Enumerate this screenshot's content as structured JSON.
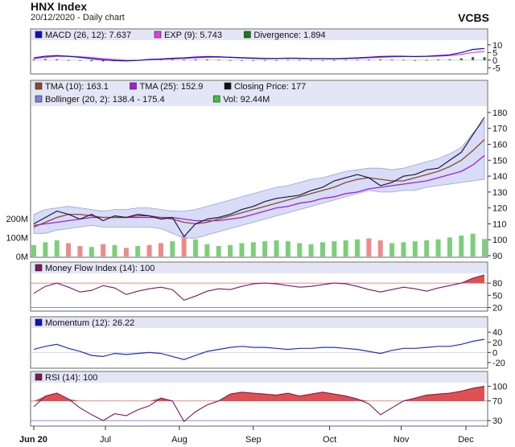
{
  "header": {
    "title": "HNX Index",
    "subtitle": "20/12/2020 - Daily chart",
    "brand": "VCBS"
  },
  "x_axis": {
    "months": [
      "Jun 20",
      "Jul",
      "Aug",
      "Sep",
      "Oct",
      "Nov",
      "Dec"
    ]
  },
  "chart_data": [
    {
      "panel": "MACD",
      "type": "line",
      "legend": [
        {
          "label": "MACD (26, 12): 7.637",
          "color": "#1010c0"
        },
        {
          "label": "EXP (9): 5.743",
          "color": "#e040e0"
        },
        {
          "label": "Divergence: 1.894",
          "color": "#1a7a1a"
        }
      ],
      "yticks": [
        10,
        5,
        0,
        -5
      ],
      "ylim": [
        -8,
        12
      ],
      "series": [
        {
          "name": "MACD (26, 12)",
          "color": "#1010c0",
          "values": [
            1.5,
            2.5,
            3,
            2.5,
            1.8,
            1,
            0.2,
            -0.3,
            -0.5,
            -0.2,
            0.5,
            0.8,
            1.2,
            1.5,
            2.0,
            2.3,
            2.2,
            1.8,
            1.5,
            1.2,
            1.0,
            1.1,
            1.3,
            1.2,
            1.0,
            1.0,
            0.9,
            1.2,
            1.5,
            1.9,
            2.3,
            2.5,
            2.5,
            2.3,
            2.5,
            3.0,
            3.5,
            5.0,
            7.0,
            7.6
          ]
        },
        {
          "name": "EXP (9)",
          "color": "#e040e0",
          "values": [
            1.0,
            1.8,
            2.4,
            2.5,
            2.2,
            1.7,
            1.0,
            0.4,
            0.0,
            -0.1,
            0.2,
            0.5,
            0.8,
            1.1,
            1.5,
            1.8,
            2.0,
            1.9,
            1.7,
            1.4,
            1.2,
            1.1,
            1.1,
            1.1,
            1.1,
            1.0,
            1.0,
            1.0,
            1.2,
            1.5,
            1.8,
            2.1,
            2.3,
            2.3,
            2.4,
            2.6,
            3.0,
            3.8,
            5.0,
            5.7
          ]
        }
      ],
      "divergence": [
        0.5,
        0.7,
        0.6,
        0,
        -0.4,
        -0.7,
        -0.8,
        -0.7,
        -0.5,
        -0.1,
        0.3,
        0.3,
        0.4,
        0.4,
        0.5,
        0.5,
        0.2,
        -0.1,
        -0.2,
        -0.2,
        -0.2,
        0,
        0.2,
        0.1,
        -0.1,
        0,
        -0.1,
        0.2,
        0.3,
        0.4,
        0.5,
        0.4,
        0.2,
        0,
        0.1,
        0.4,
        0.5,
        1.2,
        2.0,
        1.9
      ]
    },
    {
      "panel": "Price",
      "type": "line",
      "legend": [
        {
          "label": "TMA (10): 163.1",
          "color": "#8b4a2b"
        },
        {
          "label": "TMA (25): 152.9",
          "color": "#a020e0"
        },
        {
          "label": "Closing Price: 177",
          "color": "#111111"
        },
        {
          "label": "Bollinger (20, 2): 138.4 - 175.4",
          "color": "#8080d8"
        },
        {
          "label": "Vol: 92.44M",
          "color": "#40c040"
        }
      ],
      "yticks": [
        180,
        170,
        160,
        150,
        140,
        130,
        120,
        110,
        100,
        90
      ],
      "ylim": [
        90,
        183
      ],
      "vol_ticks": [
        "200M",
        "100M",
        "0M"
      ],
      "vol_max": 250,
      "close": [
        110,
        114,
        118,
        116,
        113,
        116,
        112,
        115,
        114,
        116,
        115,
        113,
        114,
        102,
        110,
        113,
        114,
        116,
        119,
        121,
        124,
        126,
        127,
        128,
        131,
        133,
        137,
        139,
        141,
        139,
        134,
        136,
        140,
        141,
        144,
        145,
        150,
        155,
        166,
        177
      ],
      "tma10": [
        108,
        111,
        114,
        116,
        116,
        115,
        114,
        114,
        114,
        115,
        115,
        114,
        113,
        111,
        110,
        111,
        113,
        115,
        117,
        119,
        121,
        123,
        125,
        127,
        129,
        131,
        133,
        136,
        138,
        139,
        138,
        137,
        137,
        139,
        141,
        143,
        146,
        150,
        156,
        163
      ],
      "tma25": [
        109,
        110,
        111,
        112,
        113,
        114,
        114,
        114,
        114,
        114,
        114,
        114,
        114,
        113,
        112,
        112,
        112,
        113,
        114,
        116,
        118,
        120,
        121,
        123,
        124,
        126,
        127,
        129,
        130,
        132,
        133,
        134,
        135,
        136,
        137,
        139,
        141,
        143,
        147,
        153
      ],
      "boll_upper": [
        116,
        119,
        120,
        121,
        120,
        119,
        118,
        119,
        119,
        120,
        120,
        119,
        118,
        118,
        119,
        121,
        123,
        125,
        127,
        129,
        131,
        133,
        134,
        136,
        138,
        139,
        141,
        143,
        144,
        145,
        145,
        144,
        145,
        147,
        149,
        151,
        154,
        158,
        167,
        175
      ],
      "boll_lower": [
        104,
        104,
        106,
        107,
        108,
        109,
        108,
        108,
        108,
        108,
        108,
        107,
        104,
        101,
        101,
        103,
        105,
        107,
        109,
        111,
        113,
        115,
        117,
        119,
        121,
        123,
        125,
        127,
        129,
        131,
        130,
        130,
        131,
        131,
        133,
        134,
        135,
        136,
        137,
        138
      ],
      "volume": [
        60,
        75,
        85,
        70,
        55,
        50,
        65,
        60,
        45,
        55,
        60,
        70,
        80,
        110,
        90,
        65,
        55,
        60,
        70,
        75,
        80,
        85,
        80,
        70,
        65,
        75,
        80,
        85,
        90,
        95,
        85,
        70,
        75,
        80,
        85,
        90,
        100,
        110,
        120,
        92
      ]
    },
    {
      "panel": "Money Flow Index",
      "type": "line",
      "legend": [
        {
          "label": "Money Flow Index (14): 100",
          "color": "#7a1a5a"
        }
      ],
      "yticks": [
        80,
        50,
        20
      ],
      "ylim": [
        15,
        100
      ],
      "reference_lines": [
        80,
        20
      ],
      "values": [
        55,
        72,
        80,
        70,
        58,
        62,
        74,
        68,
        52,
        60,
        66,
        70,
        64,
        38,
        48,
        60,
        66,
        64,
        72,
        78,
        80,
        78,
        74,
        70,
        72,
        76,
        80,
        78,
        72,
        64,
        58,
        64,
        70,
        66,
        60,
        68,
        74,
        80,
        92,
        100
      ]
    },
    {
      "panel": "Momentum",
      "type": "line",
      "legend": [
        {
          "label": "Momentum (12): 26.22",
          "color": "#1010c0"
        }
      ],
      "yticks": [
        40,
        20,
        0,
        -20
      ],
      "ylim": [
        -28,
        45
      ],
      "values": [
        6,
        12,
        16,
        8,
        2,
        -6,
        -8,
        -2,
        -4,
        -2,
        0,
        -2,
        -8,
        -14,
        -6,
        2,
        6,
        10,
        12,
        10,
        10,
        8,
        6,
        8,
        8,
        10,
        10,
        8,
        6,
        2,
        -2,
        4,
        8,
        8,
        10,
        12,
        12,
        16,
        22,
        26
      ]
    },
    {
      "panel": "RSI",
      "type": "line",
      "legend": [
        {
          "label": "RSI (14): 100",
          "color": "#7a1a5a"
        }
      ],
      "yticks": [
        100,
        70,
        30
      ],
      "ylim": [
        22,
        104
      ],
      "reference_lines": [
        70,
        30
      ],
      "values": [
        58,
        80,
        86,
        74,
        56,
        42,
        30,
        44,
        40,
        52,
        60,
        76,
        70,
        28,
        48,
        62,
        70,
        84,
        88,
        86,
        84,
        82,
        86,
        80,
        84,
        88,
        84,
        80,
        74,
        64,
        42,
        56,
        70,
        76,
        82,
        84,
        86,
        90,
        96,
        100
      ]
    }
  ]
}
